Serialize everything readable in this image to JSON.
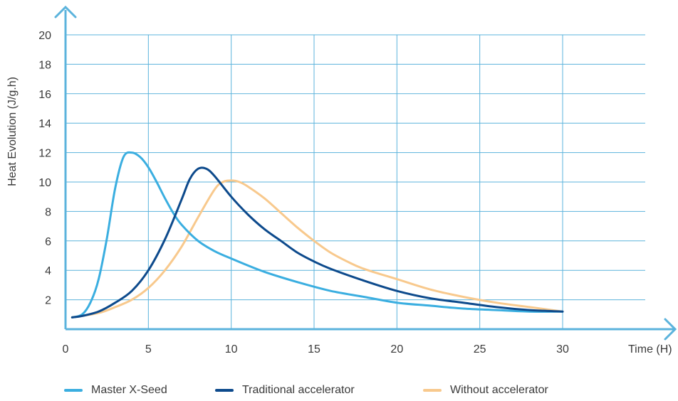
{
  "chart_data": {
    "type": "line",
    "xlabel": "Time (H)",
    "ylabel": "Heat Evolution (J/g.h)",
    "xlim": [
      0,
      30
    ],
    "ylim": [
      0,
      20
    ],
    "x_ticks": [
      "0",
      "5",
      "10",
      "15",
      "20",
      "25",
      "30"
    ],
    "y_ticks": [
      "2",
      "4",
      "6",
      "8",
      "10",
      "12",
      "14",
      "16",
      "18",
      "20"
    ],
    "grid": true,
    "legend_position": "bottom",
    "series": [
      {
        "name": "Master X-Seed",
        "color": "#3aaee0",
        "points": [
          [
            0.4,
            0.8
          ],
          [
            1.0,
            1.0
          ],
          [
            1.5,
            1.8
          ],
          [
            2.0,
            3.4
          ],
          [
            2.5,
            6.2
          ],
          [
            3.0,
            9.6
          ],
          [
            3.5,
            11.7
          ],
          [
            4.0,
            12.0
          ],
          [
            4.5,
            11.7
          ],
          [
            5.0,
            11.0
          ],
          [
            5.5,
            10.0
          ],
          [
            6.0,
            8.9
          ],
          [
            6.5,
            7.9
          ],
          [
            7.0,
            7.1
          ],
          [
            8.0,
            6.0
          ],
          [
            9.0,
            5.3
          ],
          [
            10.0,
            4.8
          ],
          [
            12.0,
            3.9
          ],
          [
            14.0,
            3.2
          ],
          [
            16.0,
            2.6
          ],
          [
            18.0,
            2.2
          ],
          [
            20.0,
            1.8
          ],
          [
            22.0,
            1.6
          ],
          [
            24.0,
            1.4
          ],
          [
            26.0,
            1.3
          ],
          [
            28.0,
            1.2
          ],
          [
            30.0,
            1.2
          ]
        ]
      },
      {
        "name": "Traditional accelerator",
        "color": "#0d4a8c",
        "points": [
          [
            0.4,
            0.8
          ],
          [
            1.0,
            0.9
          ],
          [
            2.0,
            1.2
          ],
          [
            3.0,
            1.8
          ],
          [
            4.0,
            2.6
          ],
          [
            5.0,
            4.0
          ],
          [
            6.0,
            6.1
          ],
          [
            7.0,
            8.8
          ],
          [
            7.5,
            10.2
          ],
          [
            8.0,
            10.9
          ],
          [
            8.5,
            10.9
          ],
          [
            9.0,
            10.4
          ],
          [
            10.0,
            9.0
          ],
          [
            11.0,
            7.8
          ],
          [
            12.0,
            6.8
          ],
          [
            13.0,
            6.0
          ],
          [
            14.0,
            5.2
          ],
          [
            15.0,
            4.6
          ],
          [
            16.0,
            4.1
          ],
          [
            18.0,
            3.3
          ],
          [
            20.0,
            2.6
          ],
          [
            22.0,
            2.1
          ],
          [
            24.0,
            1.8
          ],
          [
            26.0,
            1.5
          ],
          [
            28.0,
            1.3
          ],
          [
            30.0,
            1.2
          ]
        ]
      },
      {
        "name": "Without accelerator",
        "color": "#f8c98d",
        "points": [
          [
            0.4,
            0.8
          ],
          [
            2.0,
            1.1
          ],
          [
            3.0,
            1.5
          ],
          [
            4.0,
            2.0
          ],
          [
            5.0,
            2.8
          ],
          [
            6.0,
            4.0
          ],
          [
            7.0,
            5.6
          ],
          [
            8.0,
            7.6
          ],
          [
            9.0,
            9.5
          ],
          [
            9.5,
            10.0
          ],
          [
            10.0,
            10.1
          ],
          [
            10.5,
            10.0
          ],
          [
            11.0,
            9.7
          ],
          [
            12.0,
            8.9
          ],
          [
            13.0,
            7.9
          ],
          [
            14.0,
            6.9
          ],
          [
            15.0,
            6.0
          ],
          [
            16.0,
            5.2
          ],
          [
            17.0,
            4.6
          ],
          [
            18.0,
            4.1
          ],
          [
            20.0,
            3.4
          ],
          [
            22.0,
            2.7
          ],
          [
            24.0,
            2.2
          ],
          [
            26.0,
            1.8
          ],
          [
            28.0,
            1.5
          ],
          [
            30.0,
            1.2
          ]
        ]
      }
    ],
    "colors": {
      "axis": "#5bb3dc",
      "grid": "#5bb3dc",
      "text": "#3a3a3a"
    }
  }
}
